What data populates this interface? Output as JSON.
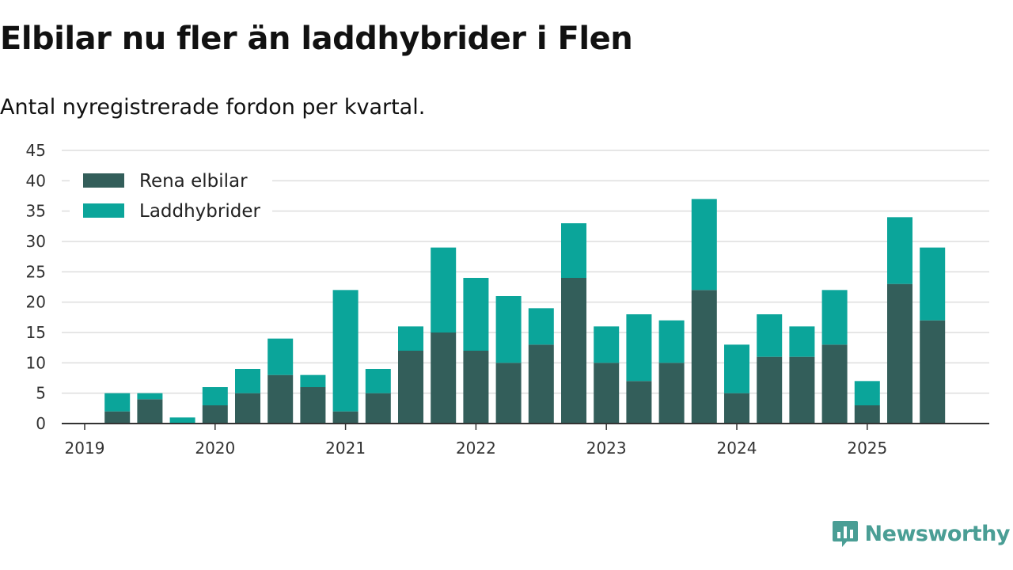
{
  "title": "Elbilar nu fler än laddhybrider i Flen",
  "subtitle": "Antal nyregistrerade fordon per kvartal.",
  "brand": {
    "name": "Newsworthy",
    "icon": "newsworthy-logo-icon",
    "color": "#4a9e95"
  },
  "chart_data": {
    "type": "bar",
    "stacked": true,
    "categories": [
      "2019 Q1",
      "2019 Q2",
      "2019 Q3",
      "2019 Q4",
      "2020 Q1",
      "2020 Q2",
      "2020 Q3",
      "2020 Q4",
      "2021 Q1",
      "2021 Q2",
      "2021 Q3",
      "2021 Q4",
      "2022 Q1",
      "2022 Q2",
      "2022 Q3",
      "2022 Q4",
      "2023 Q1",
      "2023 Q2",
      "2023 Q3",
      "2023 Q4",
      "2024 Q1",
      "2024 Q2",
      "2024 Q3",
      "2024 Q4",
      "2025 Q1",
      "2025 Q2",
      "2025 Q3"
    ],
    "series": [
      {
        "name": "Rena elbilar",
        "color": "#335e5a",
        "values": [
          0,
          2,
          4,
          0,
          3,
          5,
          8,
          6,
          2,
          5,
          12,
          15,
          12,
          10,
          13,
          24,
          10,
          7,
          10,
          22,
          5,
          11,
          11,
          13,
          3,
          23,
          17
        ]
      },
      {
        "name": "Laddhybrider",
        "color": "#0ba59a",
        "values": [
          0,
          3,
          1,
          1,
          3,
          4,
          6,
          2,
          20,
          4,
          4,
          14,
          12,
          11,
          6,
          9,
          6,
          11,
          7,
          15,
          8,
          7,
          5,
          9,
          4,
          11,
          12
        ]
      }
    ],
    "x_tick_labels": [
      "2019",
      "2020",
      "2021",
      "2022",
      "2023",
      "2024",
      "2025"
    ],
    "y_ticks": [
      0,
      5,
      10,
      15,
      20,
      25,
      30,
      35,
      40,
      45
    ],
    "ylim": [
      0,
      45
    ],
    "grid": true,
    "legend_position": "top-left"
  }
}
